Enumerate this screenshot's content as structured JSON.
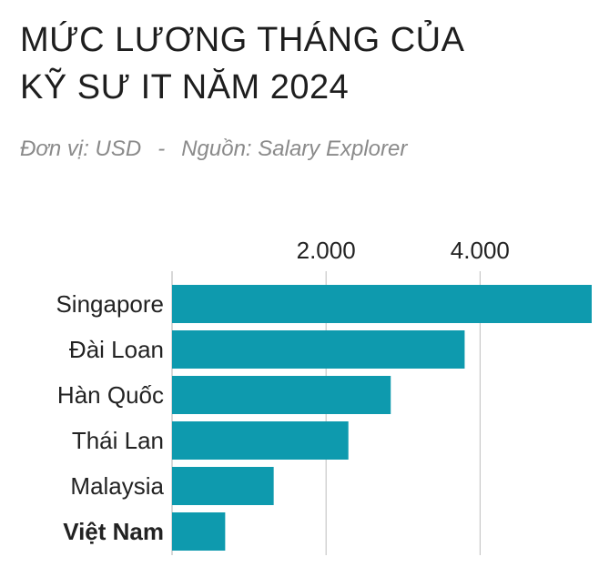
{
  "title_line1": "MỨC LƯƠNG THÁNG CỦA",
  "title_line2": "KỸ SƯ IT NĂM 2024",
  "unit_text": "Đơn vị: USD",
  "separator": "-",
  "source_text": "Nguồn: Salary Explorer",
  "chart_data": {
    "type": "bar",
    "orientation": "horizontal",
    "categories": [
      "Singapore",
      "Đài Loan",
      "Hàn Quốc",
      "Thái Lan",
      "Malaysia",
      "Việt Nam"
    ],
    "values": [
      5450,
      3800,
      2840,
      2290,
      1320,
      690
    ],
    "highlight": "Việt Nam",
    "xticks": [
      2000,
      4000
    ],
    "xtick_labels": [
      "2.000",
      "4.000"
    ],
    "xlim": [
      0,
      5450
    ],
    "grid": "vertical",
    "bar_color": "#0e9aae",
    "grid_color": "#bdbdbd"
  }
}
